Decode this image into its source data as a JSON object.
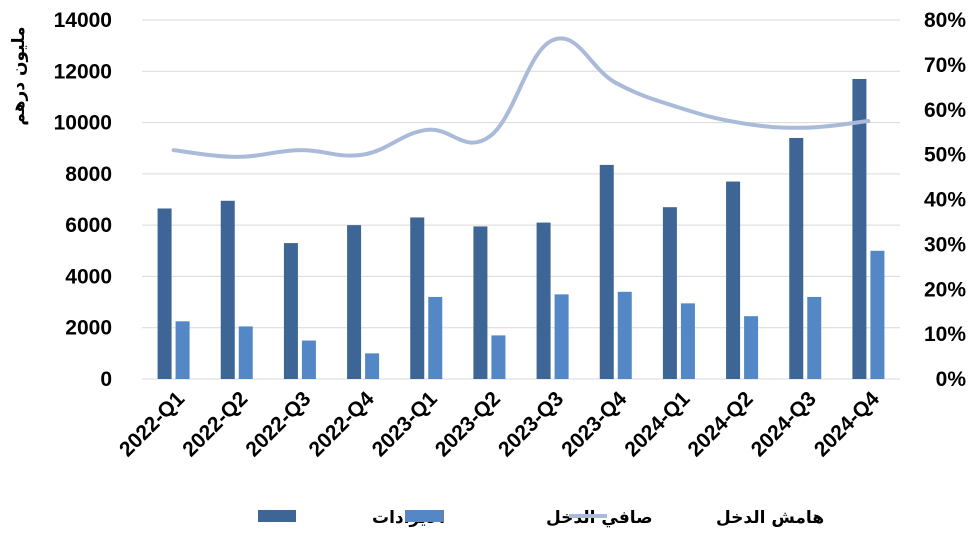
{
  "chart_data": {
    "type": "bar",
    "categories": [
      "2022-Q1",
      "2022-Q2",
      "2022-Q3",
      "2022-Q4",
      "2023-Q1",
      "2023-Q2",
      "2023-Q3",
      "2023-Q4",
      "2024-Q1",
      "2024-Q2",
      "2024-Q3",
      "2024-Q4"
    ],
    "series": [
      {
        "name": "الايرادات",
        "type": "bar",
        "axis": "left",
        "color": "#3d6596",
        "values": [
          6650,
          6950,
          5300,
          6000,
          6300,
          5950,
          6100,
          8350,
          6700,
          7700,
          9400,
          11700
        ]
      },
      {
        "name": "صافي الدخل",
        "type": "bar",
        "axis": "left",
        "color": "#5387c6",
        "values": [
          2250,
          2050,
          1500,
          1000,
          3200,
          1700,
          3300,
          3400,
          2950,
          2450,
          3200,
          5000
        ]
      },
      {
        "name": "هامش الدخل",
        "type": "line",
        "axis": "right",
        "color": "#a9bbd9",
        "smooth": true,
        "values": [
          0.51,
          0.495,
          0.51,
          0.5,
          0.555,
          0.54,
          0.755,
          0.66,
          0.605,
          0.57,
          0.56,
          0.575
        ]
      }
    ],
    "ylabel": "مليون درهم",
    "ylim": [
      0,
      14000
    ],
    "yticks": [
      0,
      2000,
      4000,
      6000,
      8000,
      10000,
      12000,
      14000
    ],
    "y2lim": [
      0,
      0.8
    ],
    "y2ticks": [
      "0%",
      "10%",
      "20%",
      "30%",
      "40%",
      "50%",
      "60%",
      "70%",
      "80%"
    ],
    "grid": true,
    "legend_position": "bottom"
  }
}
